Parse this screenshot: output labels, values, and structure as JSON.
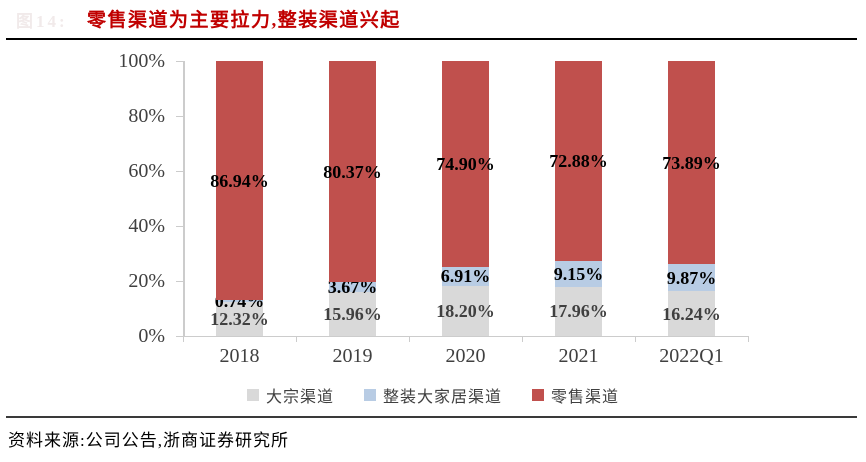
{
  "header": {
    "figure_label": "图14:",
    "title": "零售渠道为主要拉力,整装渠道兴起"
  },
  "footer": {
    "source_note": "资料来源:公司公告,浙商证券研究所"
  },
  "chart_data": {
    "type": "bar",
    "variant": "stacked-100-percent",
    "title": "零售渠道为主要拉力,整装渠道兴起",
    "categories": [
      "2018",
      "2019",
      "2020",
      "2021",
      "2022Q1"
    ],
    "series": [
      {
        "name": "大宗渠道",
        "color": "#D9D9D9",
        "label_color": "#404040",
        "values": [
          12.32,
          15.96,
          18.2,
          17.96,
          16.24
        ],
        "labels": [
          "12.32%",
          "15.96%",
          "18.20%",
          "17.96%",
          "16.24%"
        ]
      },
      {
        "name": "整装大家居渠道",
        "color": "#B8CCE4",
        "label_color": "#000000",
        "values": [
          0.74,
          3.67,
          6.91,
          9.15,
          9.87
        ],
        "labels": [
          "0.74%",
          "3.67%",
          "6.91%",
          "9.15%",
          "9.87%"
        ]
      },
      {
        "name": "零售渠道",
        "color": "#C0504D",
        "label_color": "#000000",
        "values": [
          86.94,
          80.37,
          74.9,
          72.88,
          73.89
        ],
        "labels": [
          "86.94%",
          "80.37%",
          "74.90%",
          "72.88%",
          "73.89%"
        ]
      }
    ],
    "y_axis": {
      "min": 0,
      "max": 100,
      "tick_labels": [
        "0%",
        "20%",
        "40%",
        "60%",
        "80%",
        "100%"
      ],
      "tick_step": 20
    },
    "legend_position": "bottom",
    "grid": false,
    "axis_color": "#cccccc",
    "tick_label_color": "#404040"
  }
}
